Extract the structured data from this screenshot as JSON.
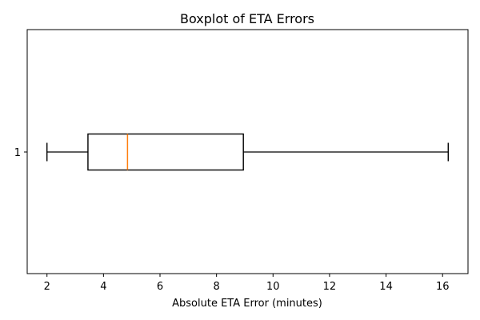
{
  "chart_data": {
    "type": "boxplot",
    "title": "Boxplot of ETA Errors",
    "xlabel": "Absolute ETA Error (minutes)",
    "ylabel": "",
    "orientation": "horizontal",
    "categories": [
      "1"
    ],
    "boxes": [
      {
        "label": "1",
        "whisker_low": 2.0,
        "q1": 3.45,
        "median": 4.85,
        "q3": 8.95,
        "whisker_high": 16.2
      }
    ],
    "xlim": [
      1.3,
      16.9
    ],
    "xticks": [
      2,
      4,
      6,
      8,
      10,
      12,
      14,
      16
    ],
    "grid": false,
    "legend": "none",
    "colors": {
      "box": "#000000",
      "median": "#ff7f0e",
      "axis": "#000000"
    }
  }
}
